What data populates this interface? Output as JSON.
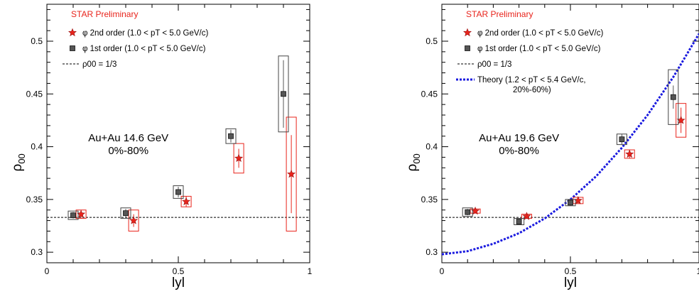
{
  "chart_data": [
    {
      "type": "scatter",
      "annotation_top": "STAR Preliminary",
      "annotation_main": [
        "Au+Au 14.6 GeV",
        "0%-80%"
      ],
      "xlabel": "lyl",
      "ylabel": "ρ00",
      "xlim": [
        0,
        1
      ],
      "ylim": [
        0.29,
        0.535
      ],
      "xticks": [
        "0",
        "0.5",
        "1"
      ],
      "yticks": [
        "0.3",
        "0.35",
        "0.4",
        "0.45",
        "0.5"
      ],
      "reference_line": {
        "y": 0.333
      },
      "legend": {
        "s2": "φ 2nd order (1.0 < pT < 5.0 GeV/c)",
        "s1": "φ 1st order (1.0 < pT < 5.0 GeV/c)",
        "ref": "ρ00 = 1/3"
      },
      "series": [
        {
          "marker": "star",
          "color": "#e8241c",
          "x": [
            0.13,
            0.33,
            0.53,
            0.73,
            0.93
          ],
          "y": [
            0.336,
            0.33,
            0.348,
            0.389,
            0.374
          ],
          "stat_err": [
            0.004,
            0.006,
            0.005,
            0.009,
            0.037
          ],
          "sys_err": [
            0.004,
            0.01,
            0.005,
            0.014,
            0.054
          ]
        },
        {
          "marker": "square",
          "color": "#555555",
          "x": [
            0.1,
            0.3,
            0.5,
            0.7,
            0.9
          ],
          "y": [
            0.335,
            0.337,
            0.357,
            0.41,
            0.45
          ],
          "stat_err": [
            0.003,
            0.004,
            0.005,
            0.006,
            0.032
          ],
          "sys_err": [
            0.004,
            0.005,
            0.006,
            0.007,
            0.036
          ]
        }
      ]
    },
    {
      "type": "scatter",
      "annotation_top": "STAR Preliminary",
      "annotation_main": [
        "Au+Au 19.6 GeV",
        "0%-80%"
      ],
      "xlabel": "lyl",
      "ylabel": "ρ00",
      "xlim": [
        0,
        1
      ],
      "ylim": [
        0.29,
        0.535
      ],
      "xticks": [
        "0",
        "0.5",
        "1"
      ],
      "yticks": [
        "0.3",
        "0.35",
        "0.4",
        "0.45",
        "0.5"
      ],
      "reference_line": {
        "y": 0.333
      },
      "legend": {
        "s2": "φ 2nd order (1.0 < pT < 5.0 GeV/c)",
        "s1": "φ 1st order (1.0 < pT < 5.0 GeV/c)",
        "ref": "ρ00 = 1/3",
        "theory_1": "Theory (1.2 < pT < 5.4 GeV/c,",
        "theory_2": "20%-60%)"
      },
      "theory": {
        "x": [
          0,
          0.1,
          0.2,
          0.3,
          0.4,
          0.5,
          0.6,
          0.7,
          0.8,
          0.9,
          1.0
        ],
        "y": [
          0.298,
          0.301,
          0.308,
          0.318,
          0.332,
          0.35,
          0.372,
          0.399,
          0.43,
          0.466,
          0.507
        ]
      },
      "series": [
        {
          "marker": "star",
          "color": "#e8241c",
          "x": [
            0.13,
            0.33,
            0.53,
            0.73,
            0.93
          ],
          "y": [
            0.339,
            0.334,
            0.349,
            0.393,
            0.425
          ],
          "stat_err": [
            0.002,
            0.002,
            0.003,
            0.004,
            0.012
          ],
          "sys_err": [
            0.002,
            0.002,
            0.003,
            0.004,
            0.016
          ]
        },
        {
          "marker": "square",
          "color": "#555555",
          "x": [
            0.1,
            0.3,
            0.5,
            0.7,
            0.9
          ],
          "y": [
            0.338,
            0.329,
            0.347,
            0.407,
            0.447
          ],
          "stat_err": [
            0.003,
            0.002,
            0.003,
            0.005,
            0.011
          ],
          "sys_err": [
            0.004,
            0.003,
            0.003,
            0.005,
            0.026
          ]
        }
      ]
    }
  ]
}
